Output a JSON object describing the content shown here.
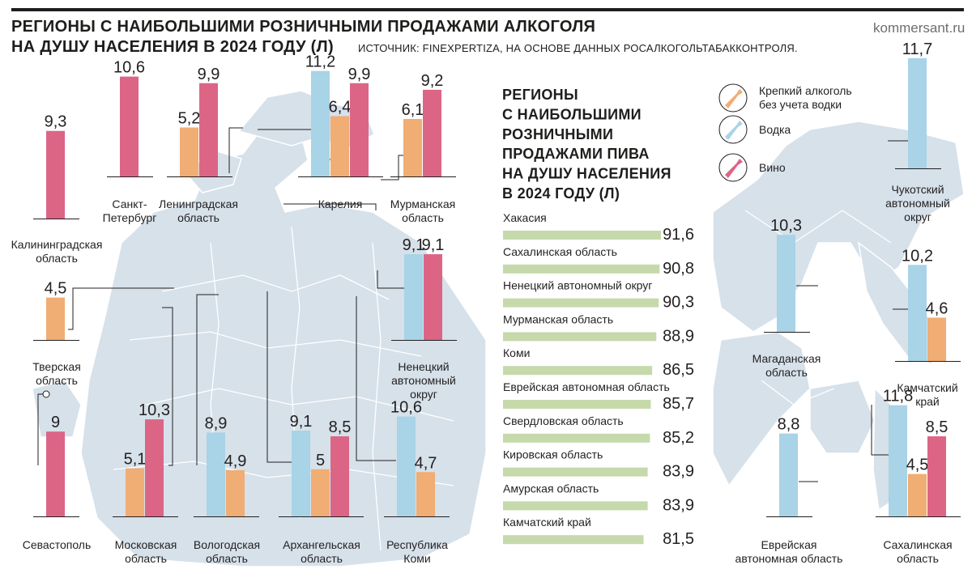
{
  "header": {
    "title_line1": "РЕГИОНЫ С НАИБОЛЬШИМИ РОЗНИЧНЫМИ ПРОДАЖАМИ АЛКОГОЛЯ",
    "title_line2": "НА ДУШУ НАСЕЛЕНИЯ В 2024 ГОДУ (Л)",
    "source": "ИСТОЧНИК: FINEXPERTIZA, НА ОСНОВЕ ДАННЫХ РОСАЛКОГОЛЬТАБАККОНТРОЛЯ.",
    "brand": "kommersant.ru"
  },
  "colors": {
    "strong": "#f0ad74",
    "vodka": "#a9d3e6",
    "wine": "#dc6586",
    "beer": "#c6d9ab",
    "map": "#d6e1ea",
    "map_dark": "#c3d2de",
    "baseline": "#231f20"
  },
  "legend": [
    {
      "key": "strong",
      "label_lines": [
        "Крепкий алкоголь",
        "без учета водки"
      ],
      "icon": "strong-alcohol-bottle-icon"
    },
    {
      "key": "vodka",
      "label_lines": [
        "Водка"
      ],
      "icon": "vodka-bottle-icon"
    },
    {
      "key": "wine",
      "label_lines": [
        "Вино"
      ],
      "icon": "wine-bottle-icon"
    }
  ],
  "chart_data": [
    {
      "type": "bar",
      "title": "РЕГИОНЫ С НАИБОЛЬШИМИ РОЗНИЧНЫМИ ПРОДАЖАМИ АЛКОГОЛЯ НА ДУШУ НАСЕЛЕНИЯ В 2024 ГОДУ (Л)",
      "series_keys": [
        "vodka",
        "strong",
        "wine"
      ],
      "series_names": {
        "strong": "Крепкий алкоголь без учета водки",
        "vodka": "Водка",
        "wine": "Вино"
      },
      "regions": [
        {
          "name_lines": [
            "Калининградская",
            "область"
          ],
          "values": {
            "wine": 9.3
          }
        },
        {
          "name_lines": [
            "Санкт-",
            "Петербург"
          ],
          "values": {
            "wine": 10.6
          }
        },
        {
          "name_lines": [
            "Ленинградская",
            "область"
          ],
          "values": {
            "strong": 5.2,
            "wine": 9.9
          }
        },
        {
          "name_lines": [
            "Карелия"
          ],
          "values": {
            "vodka": 11.2,
            "strong": 6.4,
            "wine": 9.9
          }
        },
        {
          "name_lines": [
            "Мурманская",
            "область"
          ],
          "values": {
            "strong": 6.1,
            "wine": 9.2
          }
        },
        {
          "name_lines": [
            "Тверская",
            "область"
          ],
          "values": {
            "strong": 4.5
          }
        },
        {
          "name_lines": [
            "Ненецкий",
            "автономный",
            "округ"
          ],
          "values": {
            "vodka": 9.1,
            "wine": 9.1
          }
        },
        {
          "name_lines": [
            "Севастополь"
          ],
          "values": {
            "wine": 9
          }
        },
        {
          "name_lines": [
            "Московская",
            "область"
          ],
          "values": {
            "strong": 5.1,
            "wine": 10.3
          }
        },
        {
          "name_lines": [
            "Вологодская",
            "область"
          ],
          "values": {
            "vodka": 8.9,
            "strong": 4.9
          }
        },
        {
          "name_lines": [
            "Архангельская",
            "область"
          ],
          "values": {
            "vodka": 9.1,
            "strong": 5,
            "wine": 8.5
          }
        },
        {
          "name_lines": [
            "Республика",
            "Коми"
          ],
          "values": {
            "vodka": 10.6,
            "strong": 4.7
          }
        },
        {
          "name_lines": [
            "Чукотский",
            "автономный",
            "округ"
          ],
          "values": {
            "vodka": 11.7
          }
        },
        {
          "name_lines": [
            "Магаданская",
            "область"
          ],
          "values": {
            "vodka": 10.3
          }
        },
        {
          "name_lines": [
            "Камчатский",
            "край"
          ],
          "values": {
            "vodka": 10.2,
            "strong": 4.6
          }
        },
        {
          "name_lines": [
            "Еврейская",
            "автономная область"
          ],
          "values": {
            "vodka": 8.8
          }
        },
        {
          "name_lines": [
            "Сахалинская",
            "область"
          ],
          "values": {
            "vodka": 11.8,
            "strong": 4.5,
            "wine": 8.5
          }
        }
      ]
    },
    {
      "type": "bar",
      "orientation": "horizontal",
      "title_lines": [
        "РЕГИОНЫ",
        "С НАИБОЛЬШИМИ",
        "РОЗНИЧНЫМИ",
        "ПРОДАЖАМИ ПИВА",
        "НА ДУШУ НАСЕЛЕНИЯ",
        "В 2024 ГОДУ (Л)"
      ],
      "categories": [
        "Хакасия",
        "Сахалинская область",
        "Ненецкий автономный округ",
        "Мурманская область",
        "Коми",
        "Еврейская автономная область",
        "Свердловская область",
        "Кировская область",
        "Амурская область",
        "Камчатский край"
      ],
      "values": [
        91.6,
        90.8,
        90.3,
        88.9,
        86.5,
        85.7,
        85.2,
        83.9,
        83.9,
        81.5
      ]
    }
  ]
}
